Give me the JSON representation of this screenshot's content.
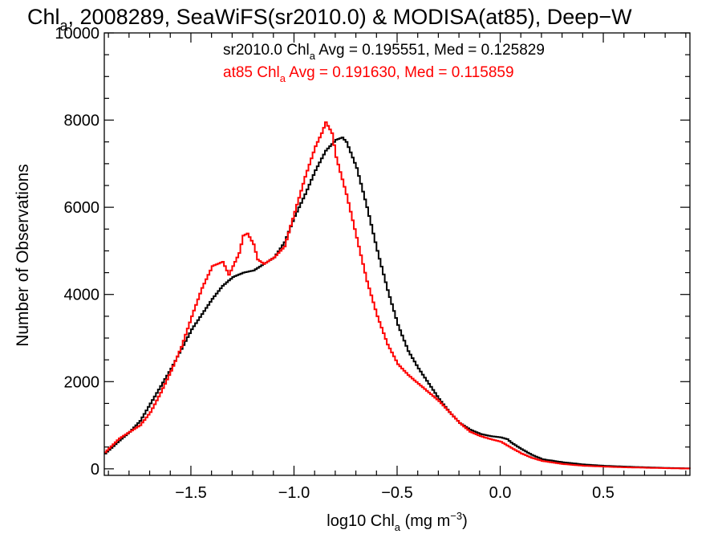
{
  "chart_data": {
    "type": "line",
    "title": {
      "part1": "Chl",
      "sub": "a",
      "part2": ", 2008289, SeaWiFS(sr2010.0) & MODISA(at85), Deep−W"
    },
    "xlabel": {
      "part1": "log10 Chl",
      "sub": "a",
      "part2": " (mg m",
      "sup": "−3",
      "part3": ")"
    },
    "ylabel": "Number of Observations",
    "xlim": [
      -1.92,
      0.92
    ],
    "ylim": [
      -150,
      10000
    ],
    "x_ticks": [
      -1.5,
      -1.0,
      -0.5,
      0.0,
      0.5
    ],
    "x_tick_labels": [
      "−1.5",
      "−1.0",
      "−0.5",
      "0.0",
      "0.5"
    ],
    "y_ticks": [
      0,
      2000,
      4000,
      6000,
      8000,
      10000
    ],
    "y_tick_labels": [
      "0",
      "2000",
      "4000",
      "6000",
      "8000",
      "10000"
    ],
    "colors": {
      "sr2010": "#000000",
      "at85": "#ff0000"
    },
    "annotations": [
      {
        "series": "sr2010",
        "color": "#000000",
        "pre": "sr2010.0 Chl",
        "sub": "a",
        "post": " Avg = 0.195551, Med = 0.125829"
      },
      {
        "series": "at85",
        "color": "#ff0000",
        "pre": "at85 Chl",
        "sub": "a",
        "post": " Avg = 0.191630, Med = 0.115859"
      }
    ],
    "series": [
      {
        "key": "sr2010",
        "color": "#000000",
        "x": [
          -1.92,
          -1.85,
          -1.8,
          -1.75,
          -1.7,
          -1.65,
          -1.6,
          -1.55,
          -1.5,
          -1.45,
          -1.4,
          -1.35,
          -1.3,
          -1.25,
          -1.2,
          -1.15,
          -1.1,
          -1.05,
          -1.0,
          -0.95,
          -0.9,
          -0.85,
          -0.8,
          -0.77,
          -0.75,
          -0.7,
          -0.65,
          -0.6,
          -0.55,
          -0.5,
          -0.45,
          -0.4,
          -0.35,
          -0.3,
          -0.25,
          -0.2,
          -0.15,
          -0.1,
          -0.05,
          0.0,
          0.03,
          0.05,
          0.1,
          0.15,
          0.2,
          0.3,
          0.4,
          0.5,
          0.6,
          0.7,
          0.8,
          0.92
        ],
        "y": [
          350,
          650,
          850,
          1100,
          1500,
          1900,
          2300,
          2750,
          3200,
          3550,
          3900,
          4200,
          4400,
          4500,
          4550,
          4700,
          4850,
          5200,
          5800,
          6300,
          6850,
          7300,
          7550,
          7600,
          7500,
          6900,
          6000,
          5000,
          4100,
          3300,
          2700,
          2300,
          1950,
          1600,
          1300,
          1050,
          900,
          800,
          750,
          720,
          680,
          600,
          450,
          320,
          220,
          150,
          100,
          70,
          50,
          35,
          20,
          10
        ]
      },
      {
        "key": "at85",
        "color": "#ff0000",
        "x": [
          -1.92,
          -1.85,
          -1.8,
          -1.75,
          -1.7,
          -1.65,
          -1.6,
          -1.55,
          -1.5,
          -1.45,
          -1.4,
          -1.35,
          -1.32,
          -1.3,
          -1.27,
          -1.25,
          -1.23,
          -1.2,
          -1.18,
          -1.15,
          -1.1,
          -1.05,
          -1.0,
          -0.95,
          -0.9,
          -0.87,
          -0.85,
          -0.82,
          -0.8,
          -0.75,
          -0.7,
          -0.65,
          -0.6,
          -0.55,
          -0.5,
          -0.45,
          -0.4,
          -0.35,
          -0.3,
          -0.25,
          -0.2,
          -0.15,
          -0.1,
          -0.05,
          0.0,
          0.05,
          0.1,
          0.15,
          0.2,
          0.3,
          0.4,
          0.5,
          0.6,
          0.7,
          0.8,
          0.92
        ],
        "y": [
          380,
          700,
          850,
          1000,
          1300,
          1750,
          2250,
          2800,
          3500,
          4150,
          4650,
          4750,
          4450,
          4650,
          4950,
          5350,
          5400,
          5150,
          4800,
          4700,
          4850,
          5100,
          5900,
          6700,
          7400,
          7700,
          7950,
          7700,
          7150,
          6300,
          5300,
          4300,
          3500,
          2850,
          2400,
          2150,
          1950,
          1750,
          1550,
          1300,
          1050,
          850,
          750,
          680,
          620,
          480,
          350,
          250,
          180,
          110,
          70,
          50,
          35,
          25,
          15,
          5
        ]
      }
    ]
  }
}
